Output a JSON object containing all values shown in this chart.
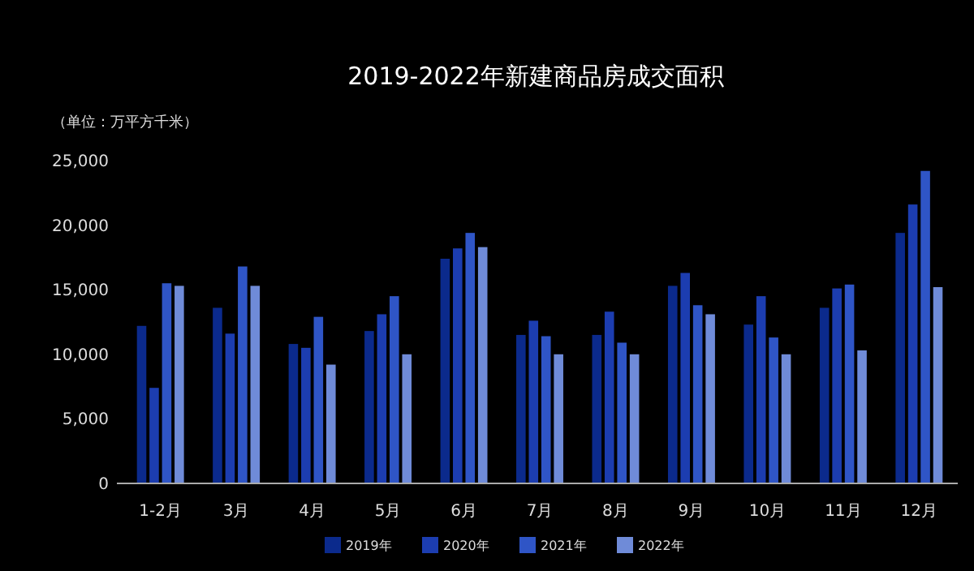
{
  "chart_data": {
    "type": "bar",
    "title": "2019-2022年新建商品房成交面积",
    "annotations": [
      "（单位：万平方千米）"
    ],
    "categories": [
      "1-2月",
      "3月",
      "4月",
      "5月",
      "6月",
      "7月",
      "8月",
      "9月",
      "10月",
      "11月",
      "12月"
    ],
    "series": [
      {
        "name": "2019年",
        "color": "#0b2a8c",
        "values": [
          12200,
          13600,
          10800,
          11800,
          17400,
          11500,
          11500,
          15300,
          12300,
          13600,
          19400
        ]
      },
      {
        "name": "2020年",
        "color": "#1c3db0",
        "values": [
          7400,
          11600,
          10500,
          13100,
          18200,
          12600,
          13300,
          16300,
          14500,
          15100,
          21600
        ]
      },
      {
        "name": "2021年",
        "color": "#2f55c6",
        "values": [
          15500,
          16800,
          12900,
          14500,
          19400,
          11400,
          10900,
          13800,
          11300,
          15400,
          24200
        ]
      },
      {
        "name": "2022年",
        "color": "#6f8bd8",
        "values": [
          15300,
          15300,
          9200,
          10000,
          18300,
          10000,
          10000,
          13100,
          10000,
          10300,
          15200
        ]
      }
    ],
    "ylim": [
      0,
      25000
    ],
    "yticks": [
      {
        "value": 0,
        "label": "0"
      },
      {
        "value": 5000,
        "label": "5,000"
      },
      {
        "value": 10000,
        "label": "10,000"
      },
      {
        "value": 15000,
        "label": "15,000"
      },
      {
        "value": 20000,
        "label": "20,000"
      },
      {
        "value": 25000,
        "label": "25,000"
      }
    ],
    "grid": false,
    "legend": "bottom"
  }
}
